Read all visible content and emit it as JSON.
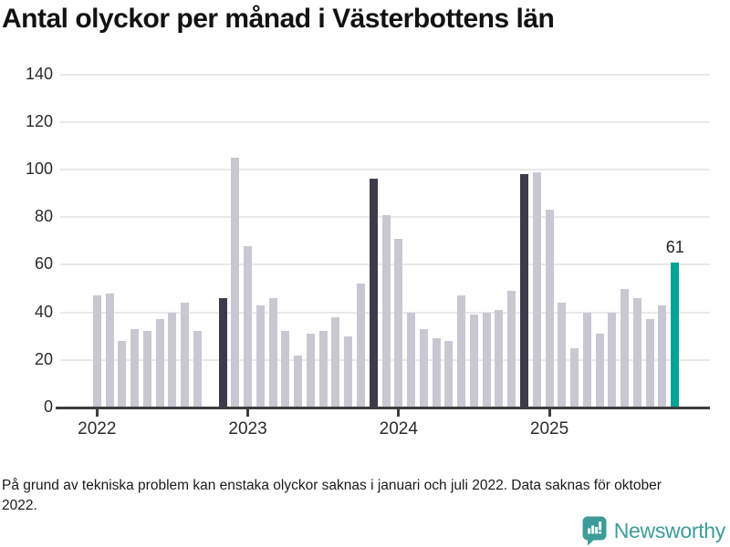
{
  "chart_data": {
    "type": "bar",
    "title": "Antal olyckor per månad i Västerbottens län",
    "x": [
      "2022-01",
      "2022-02",
      "2022-03",
      "2022-04",
      "2022-05",
      "2022-06",
      "2022-07",
      "2022-08",
      "2022-09",
      "2022-10",
      "2022-11",
      "2022-12",
      "2023-01",
      "2023-02",
      "2023-03",
      "2023-04",
      "2023-05",
      "2023-06",
      "2023-07",
      "2023-08",
      "2023-09",
      "2023-10",
      "2023-11",
      "2023-12",
      "2024-01",
      "2024-02",
      "2024-03",
      "2024-04",
      "2024-05",
      "2024-06",
      "2024-07",
      "2024-08",
      "2024-09",
      "2024-10",
      "2024-11",
      "2024-12",
      "2025-01",
      "2025-02",
      "2025-03",
      "2025-04",
      "2025-05",
      "2025-06",
      "2025-07",
      "2025-08",
      "2025-09",
      "2025-10",
      "2025-11"
    ],
    "values": [
      47,
      48,
      28,
      33,
      32,
      37,
      40,
      44,
      32,
      null,
      46,
      105,
      68,
      43,
      46,
      32,
      22,
      31,
      32,
      38,
      30,
      52,
      96,
      81,
      71,
      40,
      33,
      29,
      28,
      47,
      39,
      40,
      41,
      49,
      98,
      99,
      83,
      44,
      25,
      40,
      31,
      40,
      50,
      46,
      37,
      43,
      61
    ],
    "missing_months": [
      "2022-10"
    ],
    "highlighted_months_dark": [
      "2022-11",
      "2023-11",
      "2024-11"
    ],
    "current_month": "2025-11",
    "current_month_value": 61,
    "value_label": "61",
    "ylim": [
      0,
      140
    ],
    "yticks": [
      0,
      20,
      40,
      60,
      80,
      100,
      120,
      140
    ],
    "xtick_labels": [
      "2022",
      "2023",
      "2024",
      "2025"
    ],
    "grid": true,
    "legend": false,
    "colors": {
      "bar_default": "#c9c8d2",
      "bar_dark": "#3b3b4b",
      "bar_current": "#00a497",
      "gridline": "#e9e9e9",
      "axis": "#3d3d3d"
    }
  },
  "footer": {
    "note": "På grund av tekniska problem kan enstaka olyckor saknas i januari och juli 2022. Data saknas för oktober 2022.",
    "logo_text": "Newsworthy",
    "logo_color": "#3d9c99"
  }
}
